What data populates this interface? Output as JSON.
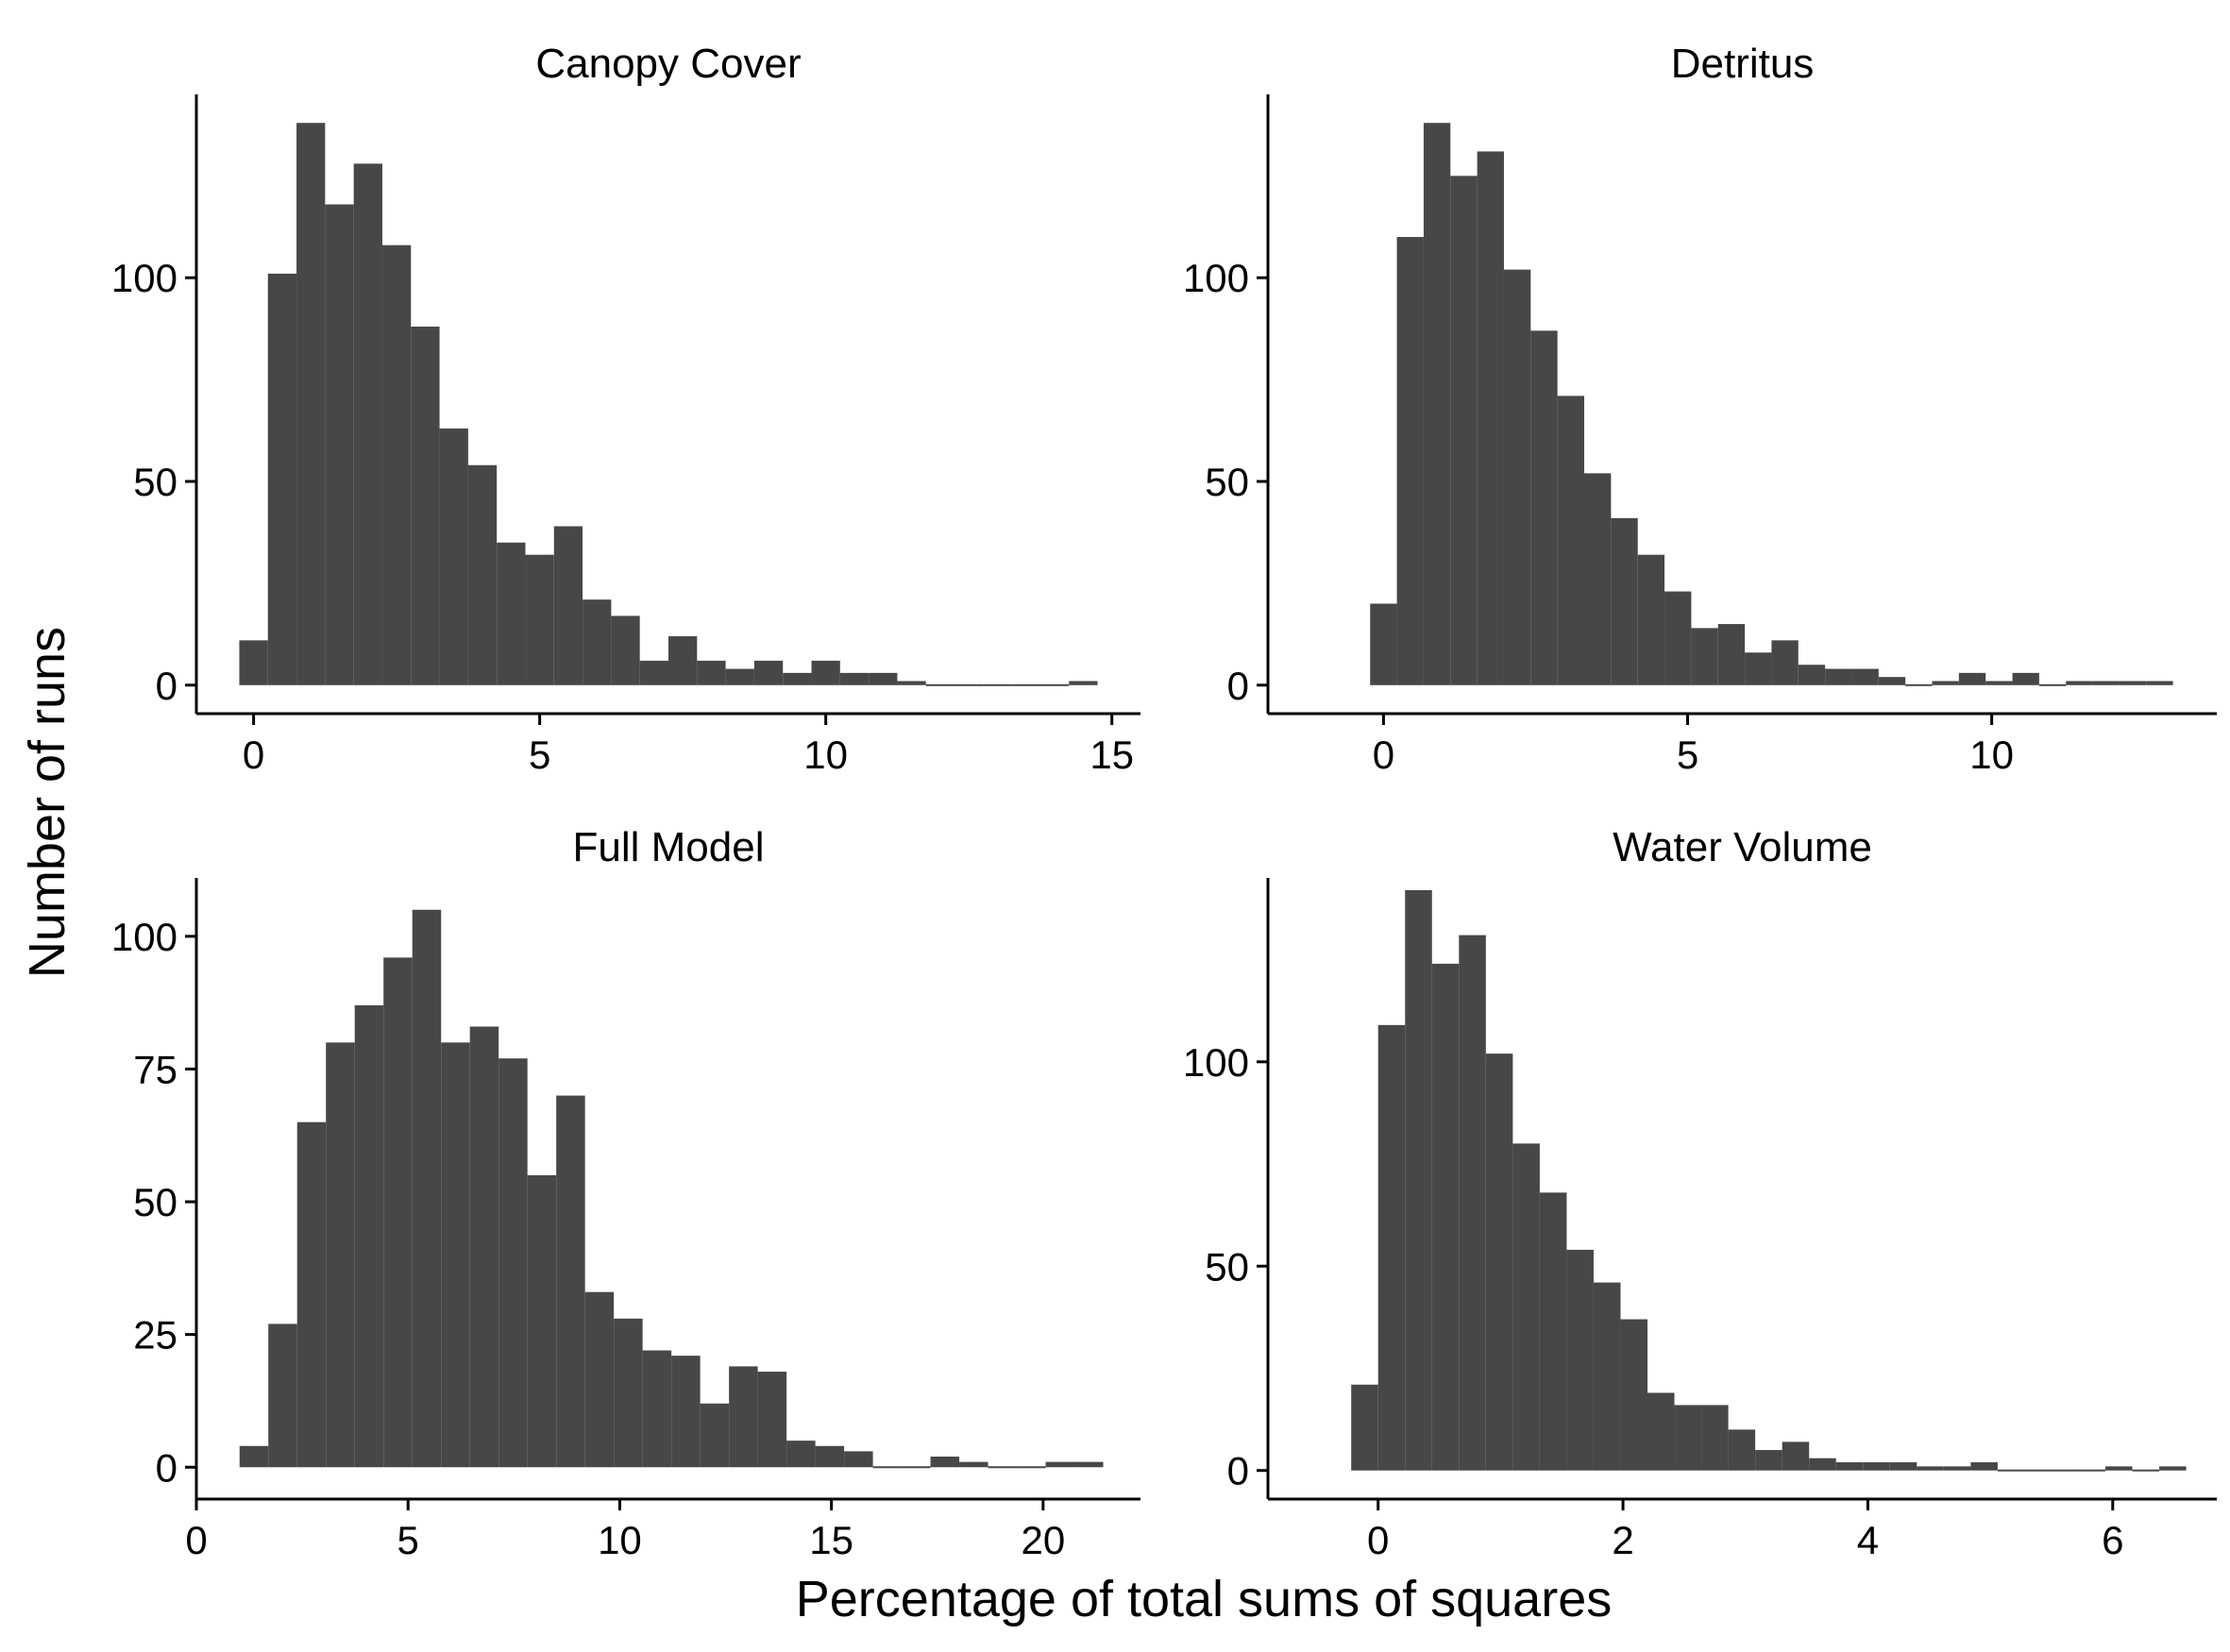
{
  "colors": {
    "bar": "#474747",
    "axis": "#000000",
    "background": "#ffffff"
  },
  "xlabel": "Percentage of total sums of squares",
  "ylabel": "Number of runs",
  "chart_data": [
    {
      "type": "histogram",
      "title": "Canopy Cover",
      "xlim": [
        -1.0,
        15.5
      ],
      "ylim": [
        -7,
        145
      ],
      "xticks": [
        0,
        5,
        10,
        15
      ],
      "yticks": [
        0,
        50,
        100
      ],
      "bin_width": 0.5,
      "bins_start": [
        -0.25,
        0.25,
        0.75,
        1.25,
        1.75,
        2.25,
        2.75,
        3.25,
        3.75,
        4.25,
        4.75,
        5.25,
        5.75,
        6.25,
        6.75,
        7.25,
        7.75,
        8.25,
        8.75,
        9.25,
        9.75,
        10.25,
        10.75,
        11.25,
        11.75,
        12.25,
        12.75,
        13.25,
        13.75,
        14.25
      ],
      "values": [
        11,
        101,
        138,
        118,
        128,
        108,
        88,
        63,
        54,
        35,
        32,
        39,
        21,
        17,
        6,
        12,
        6,
        4,
        6,
        3,
        6,
        3,
        3,
        1,
        0,
        0,
        0,
        0,
        0,
        1
      ]
    },
    {
      "type": "histogram",
      "title": "Detritus",
      "xlim": [
        -1.9,
        13.7
      ],
      "ylim": [
        -7,
        145
      ],
      "xticks": [
        0,
        5,
        10
      ],
      "yticks": [
        0,
        50,
        100
      ],
      "bin_width": 0.44,
      "bins_start": [
        -0.22,
        0.22,
        0.66,
        1.1,
        1.54,
        1.98,
        2.42,
        2.86,
        3.3,
        3.74,
        4.18,
        4.62,
        5.06,
        5.5,
        5.94,
        6.38,
        6.82,
        7.26,
        7.7,
        8.14,
        8.58,
        9.02,
        9.46,
        9.9,
        10.34,
        10.78,
        11.22,
        11.66,
        12.1,
        12.54
      ],
      "values": [
        20,
        110,
        138,
        125,
        131,
        102,
        87,
        71,
        52,
        41,
        32,
        23,
        14,
        15,
        8,
        11,
        5,
        4,
        4,
        2,
        0,
        1,
        3,
        1,
        3,
        0,
        1,
        1,
        1,
        1
      ]
    },
    {
      "type": "histogram",
      "title": "Full Model",
      "xlim": [
        0,
        22.3
      ],
      "ylim": [
        -6,
        111
      ],
      "xticks": [
        0,
        5,
        10,
        15,
        20
      ],
      "yticks": [
        0,
        25,
        50,
        75,
        100
      ],
      "bin_width": 0.68,
      "bins_start": [
        1.02,
        1.7,
        2.38,
        3.06,
        3.74,
        4.42,
        5.1,
        5.78,
        6.46,
        7.14,
        7.82,
        8.5,
        9.18,
        9.86,
        10.54,
        11.22,
        11.9,
        12.58,
        13.26,
        13.94,
        14.62,
        15.3,
        15.98,
        16.66,
        17.34,
        18.02,
        18.7,
        19.38,
        20.06,
        20.74
      ],
      "values": [
        4,
        27,
        65,
        80,
        87,
        96,
        105,
        80,
        83,
        77,
        55,
        70,
        33,
        28,
        22,
        21,
        12,
        19,
        18,
        5,
        4,
        3,
        0,
        0,
        2,
        1,
        0,
        0,
        1,
        1
      ]
    },
    {
      "type": "histogram",
      "title": "Water Volume",
      "xlim": [
        -0.9,
        6.85
      ],
      "ylim": [
        -7,
        145
      ],
      "xticks": [
        0,
        2,
        4,
        6
      ],
      "yticks": [
        0,
        50,
        100
      ],
      "bin_width": 0.22,
      "bins_start": [
        -0.22,
        0.0,
        0.22,
        0.44,
        0.66,
        0.88,
        1.1,
        1.32,
        1.54,
        1.76,
        1.98,
        2.2,
        2.42,
        2.64,
        2.86,
        3.08,
        3.3,
        3.52,
        3.74,
        3.96,
        4.18,
        4.4,
        4.62,
        4.84,
        5.06,
        5.28,
        5.5,
        5.72,
        5.94,
        6.16,
        6.38
      ],
      "values": [
        21,
        109,
        142,
        124,
        131,
        102,
        80,
        68,
        54,
        46,
        37,
        19,
        16,
        16,
        10,
        5,
        7,
        3,
        2,
        2,
        2,
        1,
        1,
        2,
        0,
        0,
        0,
        0,
        1,
        0,
        1
      ]
    }
  ]
}
